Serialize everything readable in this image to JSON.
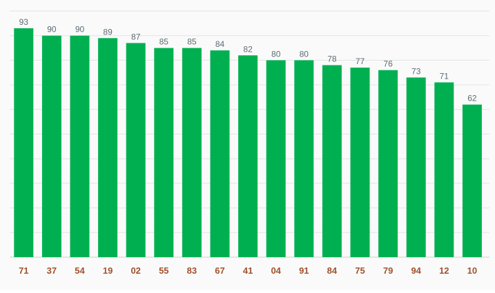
{
  "chart_data": {
    "type": "bar",
    "title": "",
    "xlabel": "",
    "ylabel": "",
    "categories": [
      "71",
      "37",
      "54",
      "19",
      "02",
      "55",
      "83",
      "67",
      "41",
      "04",
      "91",
      "84",
      "75",
      "79",
      "94",
      "12",
      "10"
    ],
    "values": [
      93,
      90,
      90,
      89,
      87,
      85,
      85,
      84,
      82,
      80,
      80,
      78,
      77,
      76,
      73,
      71,
      62
    ],
    "ylim": [
      0,
      100
    ],
    "grid": true,
    "legend": "none",
    "colors": {
      "bar": "#00b050",
      "value_label": "#5b6b73",
      "category_label": "#a0522d",
      "grid": "#e3e3e3",
      "background": "#fafafa"
    }
  }
}
